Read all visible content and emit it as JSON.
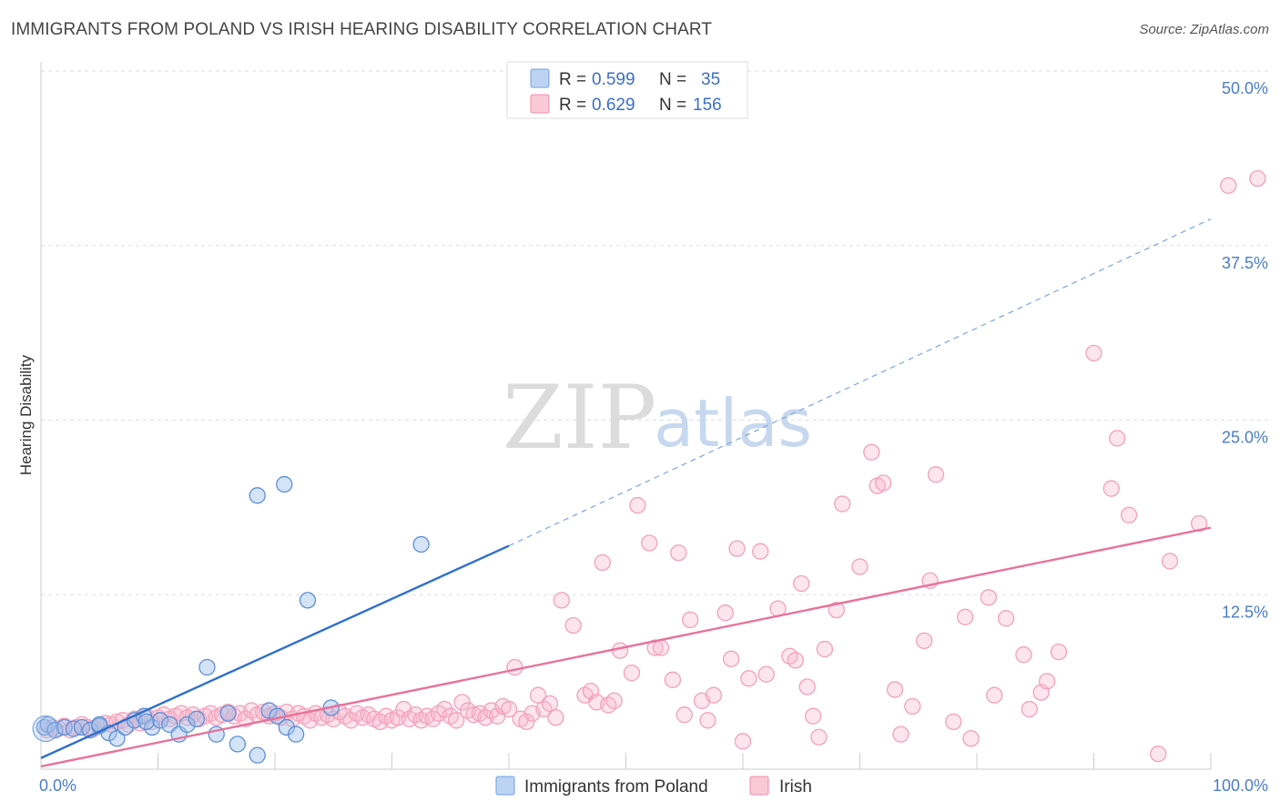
{
  "title": "IMMIGRANTS FROM POLAND VS IRISH HEARING DISABILITY CORRELATION CHART",
  "source": "Source: ZipAtlas.com",
  "watermark": {
    "zip": "ZIP",
    "atlas": "atlas"
  },
  "legend": {
    "series": [
      {
        "r_label": "R =",
        "r_value": "0.599",
        "n_label": "N =",
        "n_value": "35",
        "color": "#6fa0e0"
      },
      {
        "r_label": "R =",
        "r_value": "0.629",
        "n_label": "N =",
        "n_value": "156",
        "color": "#f08cae"
      }
    ]
  },
  "bottom_legend": [
    "Immigrants from Poland",
    "Irish"
  ],
  "chart_data": {
    "type": "scatter",
    "title": "IMMIGRANTS FROM POLAND VS IRISH HEARING DISABILITY CORRELATION CHART",
    "xlabel": "",
    "ylabel": "Hearing Disability",
    "xlim": [
      0,
      100
    ],
    "ylim": [
      0,
      50
    ],
    "x_tick_labels": [
      "0.0%",
      "100.0%"
    ],
    "y_ticks": [
      12.5,
      25.0,
      37.5,
      50.0
    ],
    "y_tick_labels": [
      "12.5%",
      "25.0%",
      "37.5%",
      "50.0%"
    ],
    "grid": true,
    "legend_position": "top-center",
    "series": [
      {
        "name": "Immigrants from Poland",
        "color": "#6fa0e0",
        "r": 0.599,
        "n": 35,
        "trend": {
          "x": [
            0,
            40
          ],
          "y": [
            0.8,
            16.0
          ],
          "dashed_extension": {
            "x": [
              40,
              100
            ],
            "y": [
              16.0,
              39.4
            ]
          }
        },
        "points": [
          [
            0.3,
            3.0
          ],
          [
            0.6,
            3.2
          ],
          [
            1.2,
            2.8
          ],
          [
            2.0,
            3.0
          ],
          [
            2.8,
            2.9
          ],
          [
            3.5,
            3.0
          ],
          [
            4.2,
            2.8
          ],
          [
            5.0,
            3.1
          ],
          [
            5.8,
            2.6
          ],
          [
            6.5,
            2.2
          ],
          [
            7.2,
            3.0
          ],
          [
            8.0,
            3.5
          ],
          [
            8.8,
            3.8
          ],
          [
            9.5,
            3.0
          ],
          [
            10.2,
            3.5
          ],
          [
            11.0,
            3.2
          ],
          [
            11.8,
            2.5
          ],
          [
            12.5,
            3.2
          ],
          [
            13.3,
            3.6
          ],
          [
            14.2,
            7.3
          ],
          [
            15.0,
            2.5
          ],
          [
            16.0,
            4.0
          ],
          [
            16.8,
            1.8
          ],
          [
            18.5,
            1.0
          ],
          [
            19.5,
            4.2
          ],
          [
            20.2,
            3.8
          ],
          [
            21.0,
            3.0
          ],
          [
            21.8,
            2.5
          ],
          [
            18.5,
            19.6
          ],
          [
            20.8,
            20.4
          ],
          [
            22.8,
            12.1
          ],
          [
            24.8,
            4.4
          ],
          [
            32.5,
            16.1
          ],
          [
            5.0,
            3.2
          ],
          [
            9.0,
            3.4
          ]
        ]
      },
      {
        "name": "Irish",
        "color": "#f08cae",
        "r": 0.629,
        "n": 156,
        "trend": {
          "x": [
            0,
            100
          ],
          "y": [
            0.2,
            17.3
          ]
        },
        "points": [
          [
            0.5,
            2.8
          ],
          [
            1.0,
            3.0
          ],
          [
            1.5,
            2.9
          ],
          [
            2.0,
            3.1
          ],
          [
            2.5,
            2.8
          ],
          [
            3.0,
            3.0
          ],
          [
            3.5,
            3.2
          ],
          [
            4.0,
            3.0
          ],
          [
            4.5,
            2.9
          ],
          [
            5.0,
            3.1
          ],
          [
            5.5,
            3.3
          ],
          [
            6.0,
            3.2
          ],
          [
            6.5,
            3.4
          ],
          [
            7.0,
            3.5
          ],
          [
            7.5,
            3.2
          ],
          [
            8.0,
            3.6
          ],
          [
            8.5,
            3.3
          ],
          [
            9.0,
            3.8
          ],
          [
            9.5,
            3.4
          ],
          [
            10.0,
            3.7
          ],
          [
            10.5,
            3.9
          ],
          [
            11.0,
            3.6
          ],
          [
            11.5,
            3.8
          ],
          [
            12.0,
            4.0
          ],
          [
            12.5,
            3.7
          ],
          [
            13.0,
            3.9
          ],
          [
            13.5,
            3.6
          ],
          [
            14.0,
            3.8
          ],
          [
            14.5,
            4.0
          ],
          [
            15.0,
            3.7
          ],
          [
            15.5,
            3.9
          ],
          [
            16.0,
            4.1
          ],
          [
            16.5,
            3.8
          ],
          [
            17.0,
            4.0
          ],
          [
            17.5,
            3.6
          ],
          [
            18.0,
            4.2
          ],
          [
            18.5,
            3.9
          ],
          [
            19.0,
            4.1
          ],
          [
            19.5,
            3.8
          ],
          [
            20.0,
            4.0
          ],
          [
            20.5,
            3.7
          ],
          [
            21.0,
            4.1
          ],
          [
            21.5,
            3.6
          ],
          [
            22.0,
            4.0
          ],
          [
            22.5,
            3.8
          ],
          [
            23.0,
            3.5
          ],
          [
            23.5,
            4.0
          ],
          [
            24.0,
            3.7
          ],
          [
            24.5,
            3.9
          ],
          [
            25.0,
            3.6
          ],
          [
            25.5,
            4.1
          ],
          [
            26.0,
            3.8
          ],
          [
            26.5,
            3.5
          ],
          [
            27.0,
            4.0
          ],
          [
            27.5,
            3.7
          ],
          [
            28.0,
            3.9
          ],
          [
            28.5,
            3.6
          ],
          [
            29.0,
            3.4
          ],
          [
            29.5,
            3.8
          ],
          [
            30.0,
            3.5
          ],
          [
            30.5,
            3.7
          ],
          [
            31.0,
            4.3
          ],
          [
            31.5,
            3.6
          ],
          [
            32.0,
            3.9
          ],
          [
            32.5,
            3.5
          ],
          [
            33.0,
            3.8
          ],
          [
            33.5,
            3.6
          ],
          [
            34.0,
            4.0
          ],
          [
            34.5,
            4.3
          ],
          [
            35.0,
            3.8
          ],
          [
            35.5,
            3.5
          ],
          [
            36.0,
            4.8
          ],
          [
            36.5,
            4.2
          ],
          [
            37.0,
            3.9
          ],
          [
            37.5,
            4.0
          ],
          [
            38.0,
            3.7
          ],
          [
            38.5,
            4.2
          ],
          [
            39.0,
            3.8
          ],
          [
            39.5,
            4.5
          ],
          [
            40.0,
            4.3
          ],
          [
            40.5,
            7.3
          ],
          [
            41.0,
            3.6
          ],
          [
            41.5,
            3.4
          ],
          [
            42.0,
            4.0
          ],
          [
            42.5,
            5.3
          ],
          [
            43.0,
            4.3
          ],
          [
            43.5,
            4.7
          ],
          [
            44.0,
            3.7
          ],
          [
            44.5,
            12.1
          ],
          [
            45.5,
            10.3
          ],
          [
            46.5,
            5.3
          ],
          [
            47.0,
            5.6
          ],
          [
            47.5,
            4.8
          ],
          [
            48.0,
            14.8
          ],
          [
            48.5,
            4.6
          ],
          [
            49.0,
            4.9
          ],
          [
            49.5,
            8.5
          ],
          [
            50.5,
            6.9
          ],
          [
            51.0,
            18.9
          ],
          [
            52.0,
            16.2
          ],
          [
            52.5,
            8.7
          ],
          [
            53.0,
            8.7
          ],
          [
            54.0,
            6.4
          ],
          [
            54.5,
            15.5
          ],
          [
            55.0,
            3.9
          ],
          [
            55.5,
            10.7
          ],
          [
            56.5,
            4.9
          ],
          [
            57.0,
            3.5
          ],
          [
            57.5,
            5.3
          ],
          [
            58.5,
            11.2
          ],
          [
            59.0,
            7.9
          ],
          [
            59.5,
            15.8
          ],
          [
            60.0,
            2.0
          ],
          [
            60.5,
            6.5
          ],
          [
            61.5,
            15.6
          ],
          [
            62.0,
            6.8
          ],
          [
            63.0,
            11.5
          ],
          [
            64.0,
            8.1
          ],
          [
            64.5,
            7.8
          ],
          [
            65.0,
            13.3
          ],
          [
            65.5,
            5.9
          ],
          [
            66.0,
            3.8
          ],
          [
            66.5,
            2.3
          ],
          [
            67.0,
            8.6
          ],
          [
            68.0,
            11.4
          ],
          [
            68.5,
            19.0
          ],
          [
            70.0,
            14.5
          ],
          [
            71.0,
            22.7
          ],
          [
            71.5,
            20.3
          ],
          [
            72.0,
            20.5
          ],
          [
            73.0,
            5.7
          ],
          [
            73.5,
            2.5
          ],
          [
            74.5,
            4.5
          ],
          [
            75.5,
            9.2
          ],
          [
            76.0,
            13.5
          ],
          [
            76.5,
            21.1
          ],
          [
            78.0,
            3.4
          ],
          [
            79.0,
            10.9
          ],
          [
            79.5,
            2.2
          ],
          [
            81.0,
            12.3
          ],
          [
            81.5,
            5.3
          ],
          [
            82.5,
            10.8
          ],
          [
            84.0,
            8.2
          ],
          [
            84.5,
            4.3
          ],
          [
            85.5,
            5.5
          ],
          [
            86.0,
            6.3
          ],
          [
            87.0,
            8.4
          ],
          [
            90.0,
            29.8
          ],
          [
            91.5,
            20.1
          ],
          [
            92.0,
            23.7
          ],
          [
            93.0,
            18.2
          ],
          [
            95.5,
            1.1
          ],
          [
            96.5,
            14.9
          ],
          [
            99.0,
            17.6
          ],
          [
            101.5,
            41.8
          ],
          [
            104.0,
            42.3
          ]
        ]
      }
    ]
  }
}
